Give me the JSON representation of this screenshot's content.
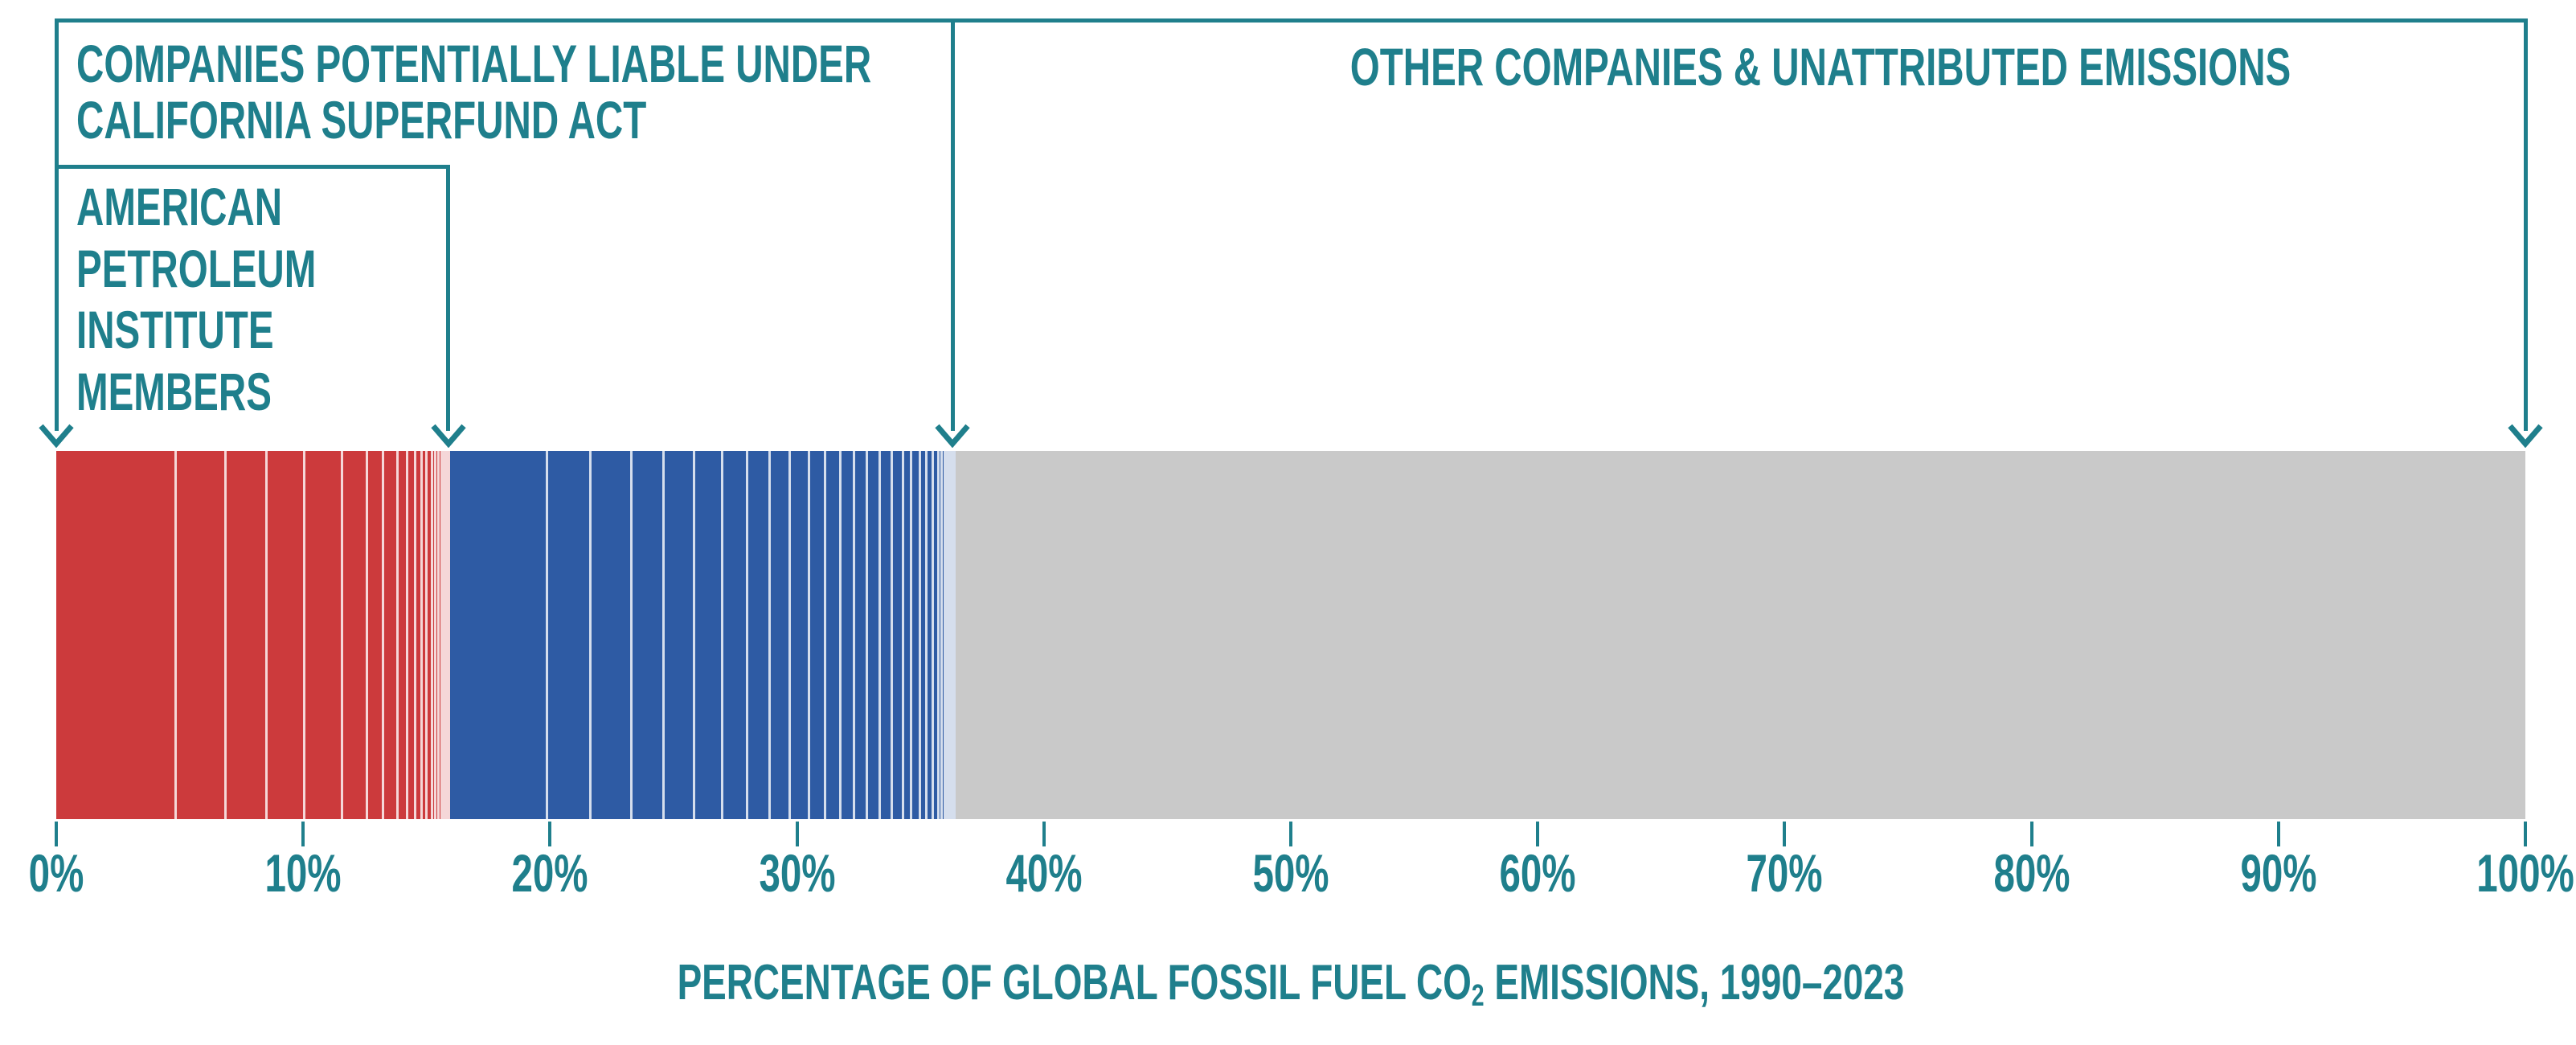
{
  "colors": {
    "teal": "#1f7f8c",
    "api_red": "#cc3a3c",
    "superfund_blue": "#2e5ba4",
    "other_gray": "#c9c9c9",
    "separator": "rgba(255,255,255,0.8)",
    "background": "#ffffff"
  },
  "annotations": {
    "superfund": {
      "line1": "COMPANIES POTENTIALLY LIABLE UNDER",
      "line2": "CALIFORNIA SUPERFUND ACT"
    },
    "api": {
      "lines": [
        "AMERICAN",
        "PETROLEUM",
        "INSTITUTE",
        "MEMBERS"
      ]
    },
    "other": {
      "label": "OTHER COMPANIES & UNATTRIBUTED EMISSIONS"
    }
  },
  "axis": {
    "tick_labels": [
      "0%",
      "10%",
      "20%",
      "30%",
      "40%",
      "50%",
      "60%",
      "70%",
      "80%",
      "90%",
      "100%"
    ],
    "tick_values": [
      0,
      10,
      20,
      30,
      40,
      50,
      60,
      70,
      80,
      90,
      100
    ]
  },
  "caption": {
    "prefix": "PERCENTAGE OF GLOBAL FOSSIL FUEL CO",
    "subscript": "2",
    "suffix": " EMISSIONS, 1990–2023"
  },
  "chart_data": {
    "type": "bar",
    "orientation": "horizontal-stacked",
    "title": "",
    "xlabel": "PERCENTAGE OF GLOBAL FOSSIL FUEL CO2 EMISSIONS, 1990–2023",
    "x_range_pct": [
      0,
      100
    ],
    "grid": false,
    "legend_position": "annotated-brackets",
    "groups": [
      {
        "name": "American Petroleum Institute members",
        "color_key": "api_red",
        "start_pct": 0,
        "end_pct": 15.88,
        "segments_pct": [
          4.88,
          2.02,
          1.69,
          1.53,
          1.53,
          1.01,
          0.65,
          0.59,
          0.39,
          0.33,
          0.26,
          0.2,
          0.2,
          0.13,
          0.13,
          0.13,
          0.07,
          0.07,
          0.065
        ]
      },
      {
        "name": "Companies potentially liable under California Superfund Act (non-API)",
        "color_key": "superfund_blue",
        "start_pct": 15.88,
        "end_pct": 36.31,
        "segments_pct": [
          4.0,
          1.76,
          1.66,
          1.3,
          1.24,
          1.14,
          1.01,
          0.91,
          0.81,
          0.78,
          0.68,
          0.62,
          0.55,
          0.52,
          0.52,
          0.49,
          0.46,
          0.33,
          0.33,
          0.26,
          0.26,
          0.26,
          0.13,
          0.1,
          0.1,
          0.07,
          0.07,
          0.065
        ]
      },
      {
        "name": "Other companies & unattributed emissions",
        "color_key": "other_gray",
        "start_pct": 36.31,
        "end_pct": 100,
        "segments_pct": [
          63.69
        ]
      }
    ],
    "bracket_arrows_pct": [
      0,
      15.88,
      36.31,
      100
    ]
  }
}
